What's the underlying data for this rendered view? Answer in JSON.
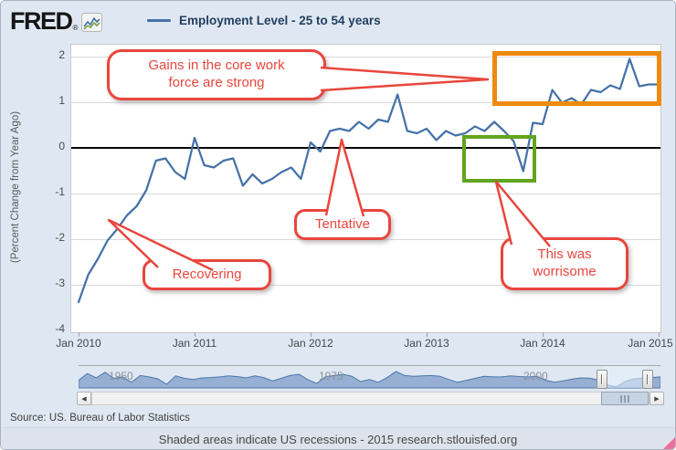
{
  "header": {
    "logo_text": "FRED",
    "logo_mark": "®",
    "legend_label": "Employment Level - 25 to 54 years"
  },
  "chart_data": {
    "type": "line",
    "title": "Employment Level - 25 to 54 years",
    "ylabel": "(Percent Change from Year Ago)",
    "frequency": "monthly",
    "x_range": [
      "Jan 2010",
      "Jan 2015"
    ],
    "x_tick_labels": [
      "Jan 2010",
      "Jan 2011",
      "Jan 2012",
      "Jan 2013",
      "Jan 2014",
      "Jan 2015"
    ],
    "y_ticks": [
      2,
      1,
      0,
      -1,
      -2,
      -3,
      -4
    ],
    "ylim": [
      -4.05,
      2.26
    ],
    "grid": true,
    "zero_line": true,
    "legend_position": "top",
    "series": [
      {
        "name": "Employment Level - 25 to 54 years",
        "color": "#4572a7",
        "values": [
          -3.4,
          -2.8,
          -2.45,
          -2.05,
          -1.8,
          -1.5,
          -1.3,
          -0.95,
          -0.3,
          -0.25,
          -0.55,
          -0.7,
          0.2,
          -0.4,
          -0.45,
          -0.3,
          -0.25,
          -0.85,
          -0.6,
          -0.8,
          -0.7,
          -0.55,
          -0.45,
          -0.7,
          0.1,
          -0.1,
          0.35,
          0.4,
          0.35,
          0.55,
          0.4,
          0.6,
          0.55,
          1.15,
          0.35,
          0.3,
          0.4,
          0.15,
          0.35,
          0.25,
          0.3,
          0.45,
          0.35,
          0.55,
          0.35,
          0.13,
          -0.53,
          0.53,
          0.5,
          1.25,
          0.97,
          1.07,
          0.93,
          1.25,
          1.2,
          1.35,
          1.27,
          1.93,
          1.33,
          1.37,
          1.37
        ]
      }
    ]
  },
  "annotations": {
    "callout_color": "#e8463c",
    "callouts": [
      {
        "id": "gains",
        "text": "Gains in the core work force are strong"
      },
      {
        "id": "recovering",
        "text": "Recovering"
      },
      {
        "id": "tentative",
        "text": "Tentative"
      },
      {
        "id": "worrisome",
        "text": "This was worrisome"
      }
    ],
    "highlight_boxes": [
      {
        "id": "strong-gains",
        "color": "#ee8a0e"
      },
      {
        "id": "worrisome-dip",
        "color": "#61a41f"
      }
    ]
  },
  "range_selector": {
    "year_labels": [
      "1950",
      "1975",
      "2000"
    ],
    "mini_values": [
      0.38,
      0.72,
      0.5,
      0.78,
      0.48,
      0.55,
      0.28,
      0.62,
      0.55,
      0.45,
      0.18,
      0.6,
      0.48,
      0.42,
      0.5,
      0.52,
      0.55,
      0.6,
      0.57,
      0.5,
      0.6,
      0.52,
      0.35,
      0.48,
      0.62,
      0.68,
      0.42,
      0.22,
      0.55,
      0.62,
      0.68,
      0.58,
      0.32,
      0.42,
      0.28,
      0.52,
      0.82,
      0.62,
      0.58,
      0.6,
      0.62,
      0.58,
      0.42,
      0.28,
      0.38,
      0.48,
      0.58,
      0.55,
      0.55,
      0.6,
      0.57,
      0.55,
      0.58,
      0.38,
      0.28,
      0.36,
      0.44,
      0.5,
      0.48,
      0.4,
      0.15,
      0.05,
      0.32,
      0.45,
      0.48,
      0.52,
      0.55
    ]
  },
  "scrollbar": {
    "left_arrow_icon": "◀",
    "right_arrow_icon": "▶"
  },
  "footer": {
    "source": "Source: US. Bureau of Labor Statistics",
    "note": "Shaded areas indicate US recessions - 2015 research.stlouisfed.org"
  }
}
